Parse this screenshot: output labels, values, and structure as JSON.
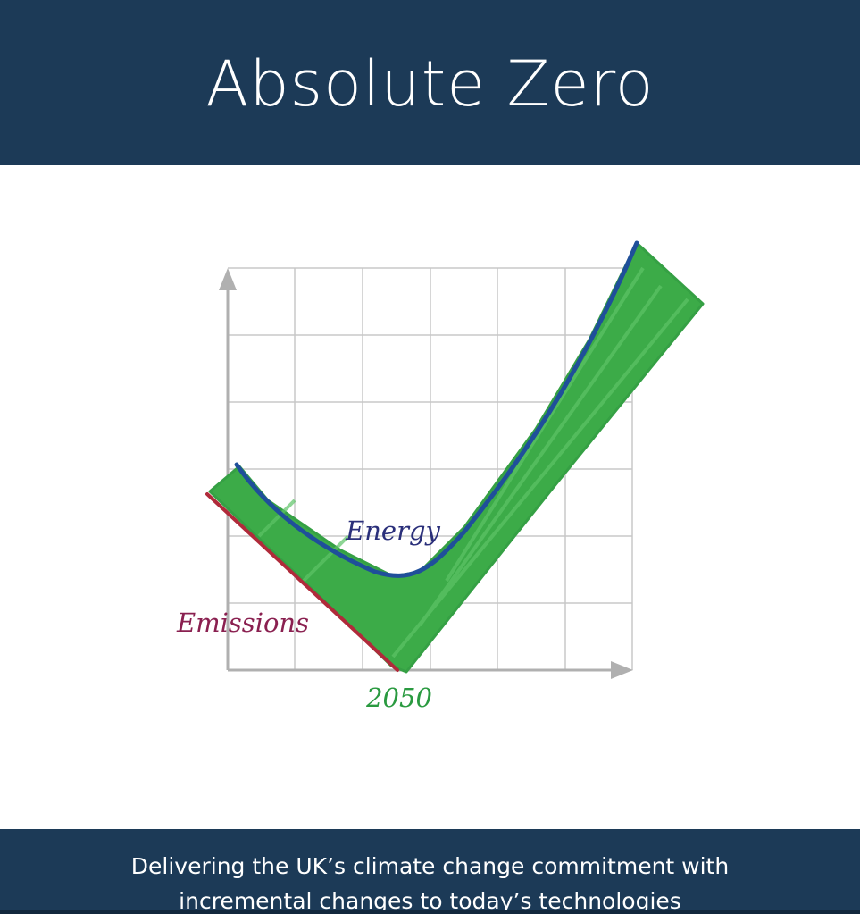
{
  "header": {
    "title": "Absolute Zero"
  },
  "illustration": {
    "labels": {
      "energy": "Energy",
      "emissions": "Emissions",
      "year": "2050"
    }
  },
  "footer": {
    "subtitle_lines": [
      "Delivering the UK’s climate change commitment with",
      "incremental changes to today’s technologies"
    ]
  }
}
